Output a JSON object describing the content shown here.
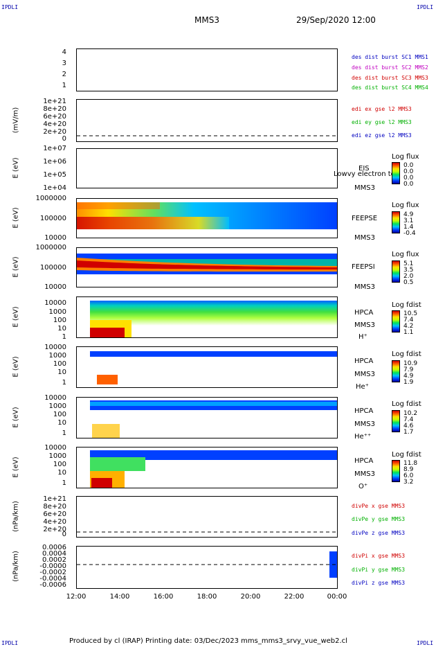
{
  "corners": {
    "tl": "IPDLI",
    "tr": "IPDLI",
    "bl": "IPDLI",
    "br": "IPDLI"
  },
  "header": {
    "title": "MMS3",
    "date": "29/Sep/2020 12:00"
  },
  "footer": {
    "text": "Produced by cl (IRAP)   Printing date: 03/Dec/2023   mms_mms3_srvy_vue_web2.cl"
  },
  "chart_data": {
    "type": "heatmap",
    "x_ticks": [
      "12:00",
      "14:00",
      "16:00",
      "18:00",
      "20:00",
      "22:00",
      "00:00"
    ],
    "panels": [
      {
        "id": "p1",
        "ylabel": "",
        "yticks": [
          "4",
          "3",
          "2",
          "1"
        ],
        "legend": [
          {
            "text": "des dist burst SC1 MMS1",
            "color": "#0000c0"
          },
          {
            "text": "des dist burst SC2 MMS2",
            "color": "#c000c0"
          },
          {
            "text": "des dist burst SC3 MMS3",
            "color": "#d00000"
          },
          {
            "text": "des dist burst SC4 MMS4",
            "color": "#00b000"
          }
        ]
      },
      {
        "id": "p2",
        "ylabel": "(mV/m)",
        "yticks": [
          "1e+21",
          "8e+20",
          "6e+20",
          "4e+20",
          "2e+20",
          "0"
        ],
        "legend": [
          {
            "text": "edi ex gse l2 MMS3",
            "color": "#d00000"
          },
          {
            "text": "edi ey gse l2 MMS3",
            "color": "#00b000"
          },
          {
            "text": "edi ez gse l2 MMS3",
            "color": "#0000c0"
          }
        ]
      },
      {
        "id": "p3",
        "ylabel": "E (eV)",
        "yticks": [
          "1e+07",
          "1e+06",
          "1e+05",
          "1e+04"
        ],
        "instrument": [
          "EIS",
          "MMS3"
        ],
        "overlay_text": "Lowvy electron to",
        "colorbar": {
          "title": "Log flux",
          "values": [
            "0.0",
            "0.0",
            "0.0",
            "0.0"
          ]
        }
      },
      {
        "id": "p4",
        "ylabel": "E (eV)",
        "yticks": [
          "1000000",
          "100000",
          "10000"
        ],
        "instrument": [
          "FEEPSE",
          "MMS3"
        ],
        "colorbar": {
          "title": "Log flux",
          "values": [
            "4.9",
            "3.1",
            "1.4",
            "-0.4"
          ]
        }
      },
      {
        "id": "p5",
        "ylabel": "E (eV)",
        "yticks": [
          "1000000",
          "100000",
          "10000"
        ],
        "instrument": [
          "FEEPSI",
          "MMS3"
        ],
        "colorbar": {
          "title": "Log flux",
          "values": [
            "5.1",
            "3.5",
            "2.0",
            "0.5"
          ]
        }
      },
      {
        "id": "p6",
        "ylabel": "E (eV)",
        "yticks": [
          "10000",
          "1000",
          "100",
          "10",
          "1"
        ],
        "instrument": [
          "HPCA",
          "MMS3",
          "H⁺"
        ],
        "colorbar": {
          "title": "Log fdist",
          "values": [
            "10.5",
            "7.4",
            "4.2",
            "1.1"
          ]
        }
      },
      {
        "id": "p7",
        "ylabel": "E (eV)",
        "yticks": [
          "10000",
          "1000",
          "100",
          "10",
          "1"
        ],
        "instrument": [
          "HPCA",
          "MMS3",
          "He⁺"
        ],
        "colorbar": {
          "title": "Log fdist",
          "values": [
            "10.9",
            "7.9",
            "4.9",
            "1.9"
          ]
        }
      },
      {
        "id": "p8",
        "ylabel": "E (eV)",
        "yticks": [
          "10000",
          "1000",
          "100",
          "10",
          "1"
        ],
        "instrument": [
          "HPCA",
          "MMS3",
          "He⁺⁺"
        ],
        "colorbar": {
          "title": "Log fdist",
          "values": [
            "10.2",
            "7.4",
            "4.6",
            "1.7"
          ]
        }
      },
      {
        "id": "p9",
        "ylabel": "E (eV)",
        "yticks": [
          "10000",
          "1000",
          "100",
          "10",
          "1"
        ],
        "instrument": [
          "HPCA",
          "MMS3",
          "O⁺"
        ],
        "colorbar": {
          "title": "Log fdist",
          "values": [
            "11.8",
            "8.9",
            "6.0",
            "3.2"
          ]
        }
      },
      {
        "id": "p10",
        "ylabel": "(nPa/km)",
        "yticks": [
          "1e+21",
          "8e+20",
          "6e+20",
          "4e+20",
          "2e+20",
          "0"
        ],
        "legend": [
          {
            "text": "divPe x gse MMS3",
            "color": "#d00000"
          },
          {
            "text": "divPe y gse MMS3",
            "color": "#00b000"
          },
          {
            "text": "divPe z gse MMS3",
            "color": "#0000c0"
          }
        ]
      },
      {
        "id": "p11",
        "ylabel": "(nPa/km)",
        "yticks": [
          "0.0006",
          "0.0004",
          "0.0002",
          "-0.0000",
          "-0.0002",
          "-0.0004",
          "-0.0006"
        ],
        "legend": [
          {
            "text": "divPi x gse MMS3",
            "color": "#d00000"
          },
          {
            "text": "divPi y gse MMS3",
            "color": "#00b000"
          },
          {
            "text": "divPi z gse MMS3",
            "color": "#0000c0"
          }
        ]
      }
    ]
  }
}
